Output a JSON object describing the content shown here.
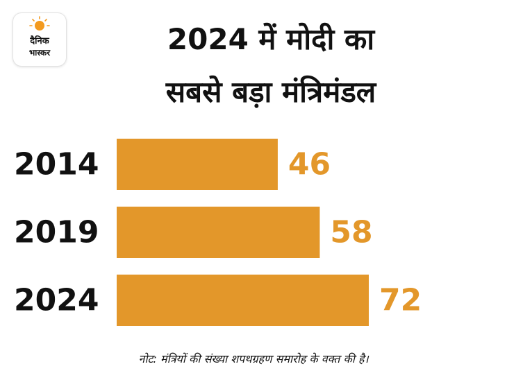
{
  "brand": {
    "logo_line1": "दैनिक",
    "logo_line2": "भास्कर",
    "accent_color": "#f39a1e"
  },
  "chart_data": {
    "type": "bar",
    "orientation": "horizontal",
    "title_line1": "2024 में मोदी का",
    "title_line2": "सबसे बड़ा मंत्रिमंडल",
    "categories": [
      "2014",
      "2019",
      "2024"
    ],
    "values": [
      46,
      58,
      72
    ],
    "value_labels": [
      "46",
      "58",
      "72"
    ],
    "xlim": [
      0,
      72
    ],
    "bar_color": "#e3972a",
    "label_color": "#e3972a",
    "grid": false,
    "legend": "none"
  },
  "note": "नोट: मंत्रियों की संख्या शपथग्रहण समारोह के वक्त की है।"
}
